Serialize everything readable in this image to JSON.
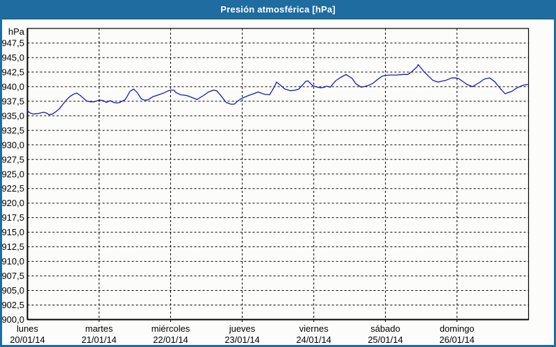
{
  "window": {
    "title": "Presión atmosférica [hPa]",
    "colors": {
      "titlebar": "#1e6ca0",
      "border": "#1e6ca0",
      "background": "#fcfdfb",
      "grid": "#000000",
      "line": "#1717bc",
      "title_text": "#ffffff"
    }
  },
  "chart_data": {
    "type": "line",
    "title": "Presión atmosférica [hPa]",
    "unit_label": "hPa",
    "ylabel": "hPa",
    "xlabel": "",
    "ylim": [
      900,
      950
    ],
    "x_range_hours": [
      0,
      168
    ],
    "grid": "dashed",
    "legend": "none",
    "y_tick_values": [
      947.5,
      945.0,
      942.5,
      940.0,
      937.5,
      935.0,
      932.5,
      930.0,
      927.5,
      925.0,
      922.5,
      920.0,
      917.5,
      915.0,
      912.5,
      910.0,
      907.5,
      905.0,
      902.5,
      900.0
    ],
    "y_tick_labels": [
      "947,5",
      "945,0",
      "942,5",
      "940,0",
      "937,5",
      "935,0",
      "932,5",
      "930,0",
      "927,5",
      "925,0",
      "922,5",
      "920,0",
      "917,5",
      "915,0",
      "912,5",
      "910,0",
      "907,5",
      "905,0",
      "902,5",
      "900,0"
    ],
    "x_days": [
      {
        "name": "lunes",
        "date": "20/01/14"
      },
      {
        "name": "martes",
        "date": "21/01/14"
      },
      {
        "name": "miércoles",
        "date": "22/01/14"
      },
      {
        "name": "jueves",
        "date": "23/01/14"
      },
      {
        "name": "viernes",
        "date": "24/01/14"
      },
      {
        "name": "sábado",
        "date": "25/01/14"
      },
      {
        "name": "domingo",
        "date": "26/01/14"
      }
    ],
    "series": [
      {
        "name": "Presión atmosférica [hPa]",
        "color": "#1717bc",
        "points_hours_hpa": [
          [
            0,
            935.8
          ],
          [
            0.9,
            935.5
          ],
          [
            1.9,
            935.3
          ],
          [
            3.7,
            935.4
          ],
          [
            5.4,
            935.6
          ],
          [
            6.3,
            935.5
          ],
          [
            7.2,
            935.2
          ],
          [
            8.4,
            935.3
          ],
          [
            9.5,
            935.7
          ],
          [
            10.7,
            936.2
          ],
          [
            11.9,
            937.0
          ],
          [
            13.0,
            937.7
          ],
          [
            14.2,
            938.3
          ],
          [
            15.4,
            938.7
          ],
          [
            16.5,
            938.9
          ],
          [
            17.7,
            938.5
          ],
          [
            18.8,
            938.0
          ],
          [
            20.0,
            937.5
          ],
          [
            21.2,
            937.4
          ],
          [
            22.3,
            937.4
          ],
          [
            23.5,
            937.6
          ],
          [
            24.2,
            937.7
          ],
          [
            25.4,
            937.6
          ],
          [
            26.5,
            937.3
          ],
          [
            27.7,
            937.6
          ],
          [
            28.9,
            937.3
          ],
          [
            30.0,
            937.2
          ],
          [
            31.0,
            937.3
          ],
          [
            32.8,
            937.8
          ],
          [
            34.4,
            939.2
          ],
          [
            35.6,
            939.6
          ],
          [
            36.8,
            939.0
          ],
          [
            38.2,
            937.9
          ],
          [
            39.1,
            937.7
          ],
          [
            40.3,
            937.7
          ],
          [
            42.1,
            938.3
          ],
          [
            44.0,
            938.6
          ],
          [
            46.1,
            939.0
          ],
          [
            47.2,
            939.3
          ],
          [
            48.2,
            939.4
          ],
          [
            49.1,
            939.4
          ],
          [
            49.8,
            939.0
          ],
          [
            51.4,
            938.6
          ],
          [
            53.3,
            938.5
          ],
          [
            54.9,
            938.2
          ],
          [
            56.8,
            937.8
          ],
          [
            59.1,
            938.5
          ],
          [
            60.7,
            939.1
          ],
          [
            62.4,
            939.4
          ],
          [
            63.5,
            939.3
          ],
          [
            65.4,
            938.1
          ],
          [
            66.6,
            937.3
          ],
          [
            68.2,
            937.0
          ],
          [
            69.3,
            937.0
          ],
          [
            70.7,
            937.6
          ],
          [
            71.9,
            938.0
          ],
          [
            74.2,
            938.5
          ],
          [
            75.9,
            938.8
          ],
          [
            77.3,
            939.1
          ],
          [
            79.4,
            938.7
          ],
          [
            81.2,
            938.6
          ],
          [
            82.8,
            940.0
          ],
          [
            83.5,
            940.8
          ],
          [
            84.7,
            940.3
          ],
          [
            86.3,
            939.6
          ],
          [
            88.2,
            939.3
          ],
          [
            89.8,
            939.4
          ],
          [
            91.0,
            939.6
          ],
          [
            93.3,
            940.9
          ],
          [
            94.0,
            941.0
          ],
          [
            95.6,
            940.2
          ],
          [
            97.3,
            939.9
          ],
          [
            98.4,
            939.8
          ],
          [
            99.6,
            939.9
          ],
          [
            100.3,
            940.1
          ],
          [
            101.5,
            939.9
          ],
          [
            103.3,
            941.0
          ],
          [
            105.0,
            941.6
          ],
          [
            106.8,
            942.1
          ],
          [
            108.9,
            941.4
          ],
          [
            110.1,
            940.5
          ],
          [
            111.9,
            939.9
          ],
          [
            114.3,
            940.2
          ],
          [
            115.9,
            940.6
          ],
          [
            117.3,
            941.2
          ],
          [
            118.9,
            941.8
          ],
          [
            119.6,
            941.9
          ],
          [
            121.2,
            942.0
          ],
          [
            123.6,
            942.0
          ],
          [
            125.9,
            942.1
          ],
          [
            127.5,
            942.1
          ],
          [
            128.9,
            942.6
          ],
          [
            130.6,
            943.4
          ],
          [
            131.0,
            943.8
          ],
          [
            132.9,
            942.6
          ],
          [
            134.5,
            941.8
          ],
          [
            135.9,
            941.1
          ],
          [
            137.6,
            940.8
          ],
          [
            140.3,
            941.1
          ],
          [
            142.2,
            941.5
          ],
          [
            143.6,
            941.5
          ],
          [
            144.5,
            941.4
          ],
          [
            145.7,
            941.0
          ],
          [
            147.3,
            940.4
          ],
          [
            149.2,
            940.0
          ],
          [
            151.5,
            940.7
          ],
          [
            153.1,
            941.3
          ],
          [
            155.0,
            941.5
          ],
          [
            156.8,
            940.8
          ],
          [
            158.5,
            939.7
          ],
          [
            160.1,
            938.8
          ],
          [
            162.4,
            939.2
          ],
          [
            163.8,
            939.7
          ],
          [
            165.4,
            940.1
          ],
          [
            166.6,
            940.3
          ],
          [
            168,
            940.4
          ]
        ]
      }
    ]
  }
}
